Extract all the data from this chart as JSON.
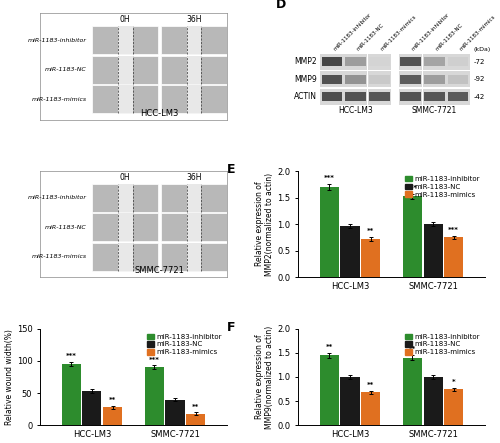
{
  "panel_C": {
    "groups": [
      "HCC-LM3",
      "SMMC-7721"
    ],
    "categories": [
      "miR-1183-inhibitor",
      "miR-1183-NC",
      "miR-1183-mimics"
    ],
    "values": [
      [
        95,
        53,
        28
      ],
      [
        90,
        40,
        18
      ]
    ],
    "errors": [
      [
        3,
        3,
        2
      ],
      [
        3,
        3,
        2
      ]
    ],
    "colors": [
      "#2d8c2d",
      "#1a1a1a",
      "#e07020"
    ],
    "ylabel": "Relative wound width(%)",
    "ylim": [
      0,
      150
    ],
    "yticks": [
      0,
      50,
      100,
      150
    ],
    "significance": [
      [
        "***",
        "",
        "**"
      ],
      [
        "***",
        "",
        "**"
      ]
    ]
  },
  "panel_E": {
    "groups": [
      "HCC-LM3",
      "SMMC-7721"
    ],
    "categories": [
      "miR-1183-inhibitor",
      "miR-1183-NC",
      "miR-1183-mimics"
    ],
    "values": [
      [
        1.7,
        0.97,
        0.72
      ],
      [
        1.52,
        1.0,
        0.75
      ]
    ],
    "errors": [
      [
        0.05,
        0.04,
        0.03
      ],
      [
        0.05,
        0.04,
        0.03
      ]
    ],
    "colors": [
      "#2d8c2d",
      "#1a1a1a",
      "#e07020"
    ],
    "ylabel": "Relative expression of\nMMP2(normalized to actin)",
    "ylim": [
      0.0,
      2.0
    ],
    "yticks": [
      0.0,
      0.5,
      1.0,
      1.5,
      2.0
    ],
    "significance": [
      [
        "***",
        "",
        "**"
      ],
      [
        "***",
        "",
        "***"
      ]
    ]
  },
  "panel_F": {
    "groups": [
      "HCC-LM3",
      "SMMC-7721"
    ],
    "categories": [
      "miR-1183-inhibitor",
      "miR-1183-NC",
      "miR-1183-mimics"
    ],
    "values": [
      [
        1.45,
        1.0,
        0.68
      ],
      [
        1.4,
        1.0,
        0.75
      ]
    ],
    "errors": [
      [
        0.05,
        0.04,
        0.03
      ],
      [
        0.05,
        0.04,
        0.03
      ]
    ],
    "colors": [
      "#2d8c2d",
      "#1a1a1a",
      "#e07020"
    ],
    "ylabel": "Relative expression of\nMMP9(normalized to actin)",
    "ylim": [
      0.0,
      2.0
    ],
    "yticks": [
      0.0,
      0.5,
      1.0,
      1.5,
      2.0
    ],
    "significance": [
      [
        "**",
        "",
        "**"
      ],
      [
        "**",
        "",
        "*"
      ]
    ]
  },
  "legend_labels": [
    "miR-1183-inhibitor",
    "miR-1183-NC",
    "miR-1183-mimics"
  ],
  "legend_colors": [
    "#2d8c2d",
    "#1a1a1a",
    "#e07020"
  ],
  "panel_labels_row": [
    "miR-1183-inhibitor",
    "miR-1183-NC",
    "miR-1183-mimics"
  ],
  "col_labels": [
    "0H",
    "36H"
  ],
  "blot_row_labels": [
    "MMP2",
    "MMP9",
    "ACTIN"
  ],
  "blot_kda": [
    "-72",
    "-92",
    "-42"
  ],
  "blot_lane_labels": [
    "miR-1183-inhibitor",
    "miR-1183-NC",
    "miR-1183-mimics",
    "miR-1183-inhibitor",
    "miR-1183-NC",
    "miR-1183-mimics"
  ],
  "blot_group_labels": [
    "HCC-LM3",
    "SMMC-7721"
  ],
  "blot_group_kda_label": "(kDa)"
}
